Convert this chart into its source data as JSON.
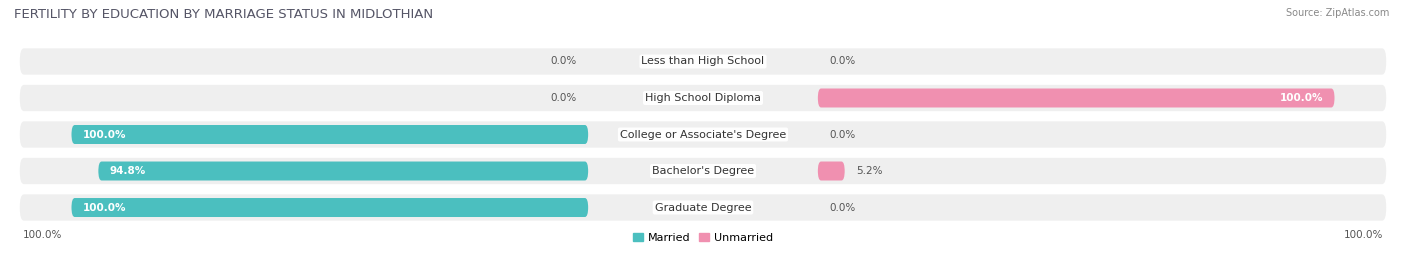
{
  "title": "FERTILITY BY EDUCATION BY MARRIAGE STATUS IN MIDLOTHIAN",
  "source": "Source: ZipAtlas.com",
  "categories": [
    "Less than High School",
    "High School Diploma",
    "College or Associate's Degree",
    "Bachelor's Degree",
    "Graduate Degree"
  ],
  "married": [
    0.0,
    0.0,
    100.0,
    94.8,
    100.0
  ],
  "unmarried": [
    0.0,
    100.0,
    0.0,
    5.2,
    0.0
  ],
  "married_color": "#4bbfbf",
  "unmarried_color": "#f090b0",
  "row_bg_color": "#efefef",
  "title_fontsize": 9.5,
  "label_fontsize": 8,
  "value_fontsize": 7.5,
  "legend_fontsize": 8,
  "source_fontsize": 7,
  "axis_label_left": "100.0%",
  "axis_label_right": "100.0%"
}
